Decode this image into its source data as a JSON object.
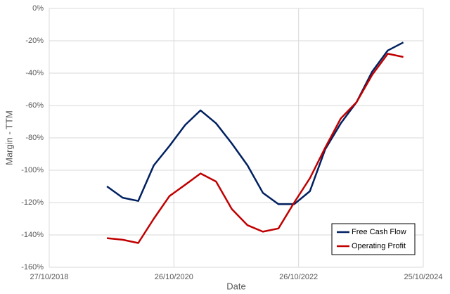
{
  "chart_data": {
    "type": "line",
    "x_label": "Date",
    "y_label": "Margin - TTM",
    "x": [
      "2019-09-30",
      "2019-12-31",
      "2020-03-31",
      "2020-06-30",
      "2020-09-30",
      "2020-12-31",
      "2021-03-31",
      "2021-06-30",
      "2021-09-30",
      "2021-12-31",
      "2022-03-31",
      "2022-06-30",
      "2022-09-30",
      "2022-12-31",
      "2023-03-31",
      "2023-06-30",
      "2023-09-30",
      "2023-12-31",
      "2024-03-31",
      "2024-06-30"
    ],
    "series": [
      {
        "name": "Free Cash Flow",
        "color": "#002060",
        "values": [
          -110,
          -117,
          -119,
          -97,
          -85,
          -72,
          -63,
          -71,
          -83.5,
          -97,
          -114,
          -121,
          -121,
          -113,
          -87,
          -71,
          -58,
          -39,
          -26,
          -21
        ]
      },
      {
        "name": "Operating Profit",
        "color": "#c00000",
        "values": [
          -142,
          -143,
          -145,
          -130,
          -116,
          -109,
          -102,
          -107,
          -124,
          -134,
          -138,
          -136,
          -120,
          -105,
          -86,
          -68,
          -58,
          -41,
          -28,
          -30
        ]
      }
    ],
    "xlim": [
      "2018-10-27",
      "2024-10-25"
    ],
    "xticks": [
      {
        "value": "2018-10-27",
        "label": "27/10/2018"
      },
      {
        "value": "2020-10-26",
        "label": "26/10/2020"
      },
      {
        "value": "2022-10-26",
        "label": "26/10/2022"
      },
      {
        "value": "2024-10-25",
        "label": "25/10/2024"
      }
    ],
    "ylim": [
      -160,
      0
    ],
    "yticks": [
      {
        "value": 0,
        "label": "0%"
      },
      {
        "value": -20,
        "label": "-20%"
      },
      {
        "value": -40,
        "label": "-40%"
      },
      {
        "value": -60,
        "label": "-60%"
      },
      {
        "value": -80,
        "label": "-80%"
      },
      {
        "value": -100,
        "label": "-100%"
      },
      {
        "value": -120,
        "label": "-120%"
      },
      {
        "value": -140,
        "label": "-140%"
      },
      {
        "value": -160,
        "label": "-160%"
      }
    ],
    "grid": true,
    "legend": "lower right"
  }
}
